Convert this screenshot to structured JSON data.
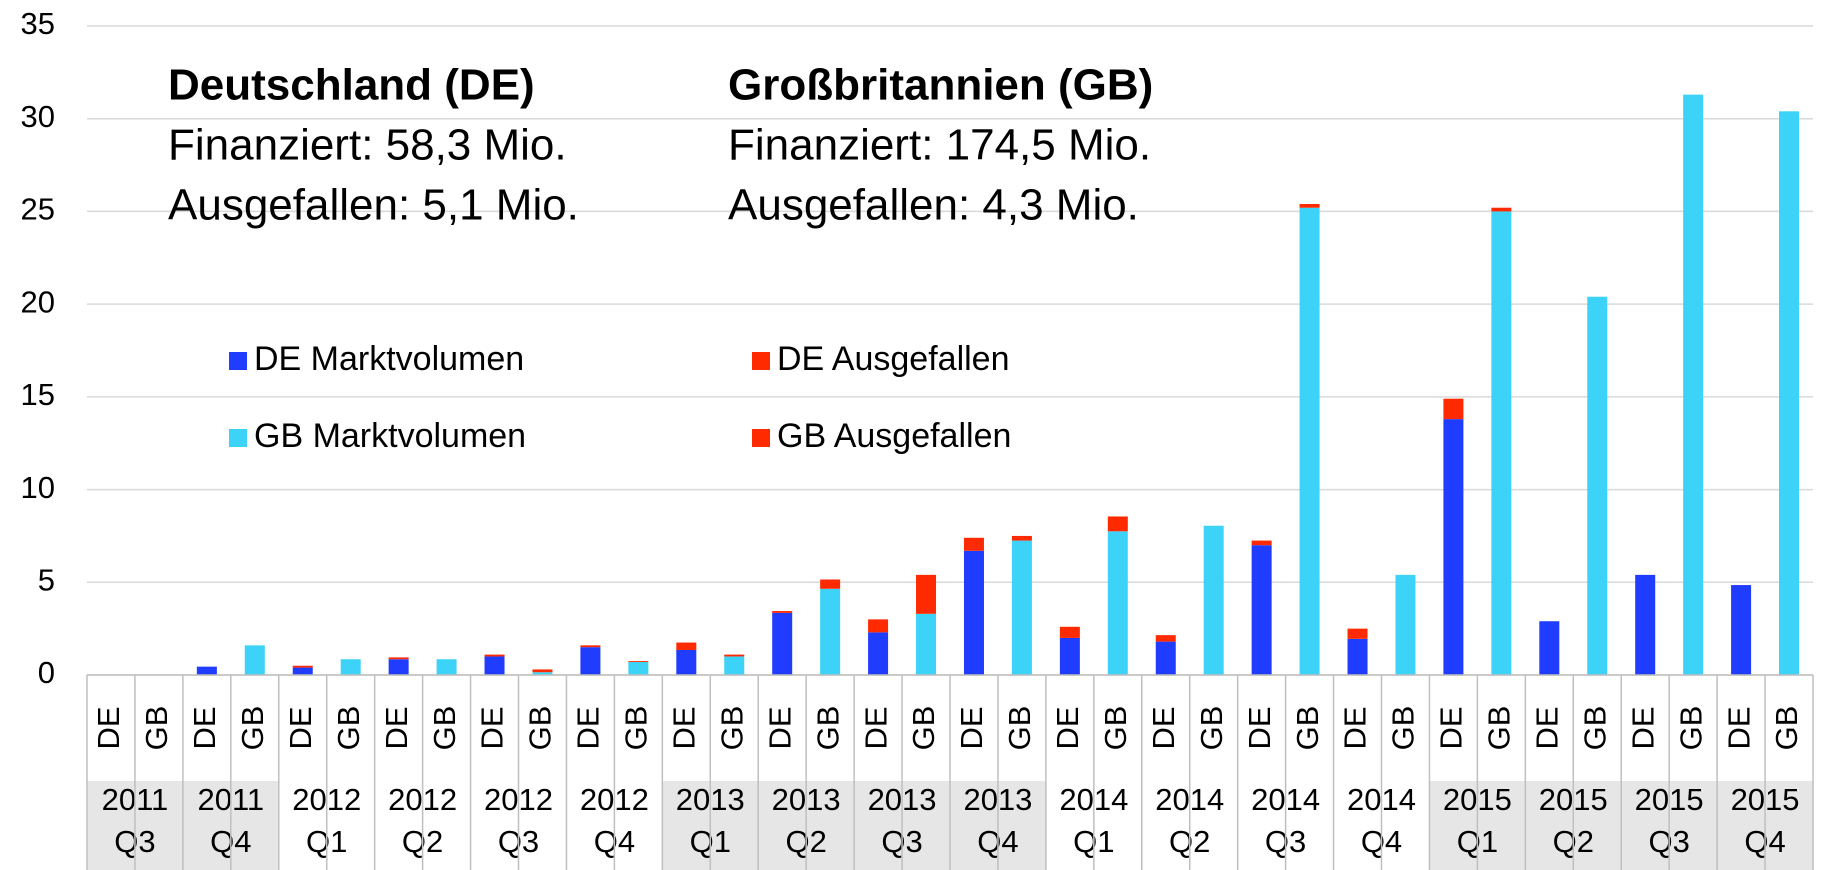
{
  "chart_data": {
    "type": "stacked_bar",
    "categories": [
      "DE",
      "GB",
      "DE",
      "GB",
      "DE",
      "GB",
      "DE",
      "GB",
      "DE",
      "GB",
      "DE",
      "GB",
      "DE",
      "GB",
      "DE",
      "GB",
      "DE",
      "GB",
      "DE",
      "GB",
      "DE",
      "GB",
      "DE",
      "GB",
      "DE",
      "GB",
      "DE",
      "GB",
      "DE",
      "GB",
      "DE",
      "GB",
      "DE",
      "GB",
      "DE",
      "GB"
    ],
    "groups": [
      [
        "2011",
        "Q3"
      ],
      [
        "2011",
        "Q4"
      ],
      [
        "2012",
        "Q1"
      ],
      [
        "2012",
        "Q2"
      ],
      [
        "2012",
        "Q3"
      ],
      [
        "2012",
        "Q4"
      ],
      [
        "2013",
        "Q1"
      ],
      [
        "2013",
        "Q2"
      ],
      [
        "2013",
        "Q3"
      ],
      [
        "2013",
        "Q4"
      ],
      [
        "2014",
        "Q1"
      ],
      [
        "2014",
        "Q2"
      ],
      [
        "2014",
        "Q3"
      ],
      [
        "2014",
        "Q4"
      ],
      [
        "2015",
        "Q1"
      ],
      [
        "2015",
        "Q2"
      ],
      [
        "2015",
        "Q3"
      ],
      [
        "2015",
        "Q4"
      ]
    ],
    "group_fill": [
      "#e6e6e6",
      "#e6e6e6",
      "#ffffff",
      "#ffffff",
      "#ffffff",
      "#ffffff",
      "#e6e6e6",
      "#e6e6e6",
      "#e6e6e6",
      "#e6e6e6",
      "#ffffff",
      "#ffffff",
      "#ffffff",
      "#ffffff",
      "#e6e6e6",
      "#e6e6e6",
      "#e6e6e6",
      "#e6e6e6"
    ],
    "series": [
      {
        "name": "DE Marktvolumen",
        "color": "#1f3cff",
        "values": [
          0,
          null,
          0.45,
          null,
          0.4,
          null,
          0.85,
          null,
          1.0,
          null,
          1.5,
          null,
          1.35,
          null,
          3.35,
          null,
          2.3,
          null,
          6.7,
          null,
          2.0,
          null,
          1.8,
          null,
          7.0,
          null,
          1.95,
          null,
          13.8,
          null,
          2.9,
          null,
          5.4,
          null,
          4.85,
          null
        ]
      },
      {
        "name": "DE Ausgefallen",
        "color": "#ff2a00",
        "values": [
          0,
          null,
          0,
          null,
          0.1,
          null,
          0.1,
          null,
          0.1,
          null,
          0.1,
          null,
          0.4,
          null,
          0.1,
          null,
          0.7,
          null,
          0.7,
          null,
          0.6,
          null,
          0.35,
          null,
          0.25,
          null,
          0.55,
          null,
          1.1,
          null,
          0,
          null,
          0,
          null,
          0,
          null
        ]
      },
      {
        "name": "GB Marktvolumen",
        "color": "#3dd3f8",
        "values": [
          null,
          0,
          null,
          1.6,
          null,
          0.85,
          null,
          0.85,
          null,
          0.15,
          null,
          0.7,
          null,
          1.0,
          null,
          4.65,
          null,
          3.3,
          null,
          7.25,
          null,
          7.75,
          null,
          8.05,
          null,
          25.2,
          null,
          5.4,
          null,
          25.0,
          null,
          20.4,
          null,
          31.3,
          null,
          30.4
        ]
      },
      {
        "name": "GB Ausgefallen",
        "color": "#ff2a00",
        "values": [
          null,
          0,
          null,
          0,
          null,
          0,
          null,
          0,
          null,
          0.15,
          null,
          0.05,
          null,
          0.1,
          null,
          0.5,
          null,
          2.1,
          null,
          0.25,
          null,
          0.8,
          null,
          0,
          null,
          0.2,
          null,
          0,
          null,
          0.2,
          null,
          0,
          null,
          0,
          null,
          0
        ]
      }
    ],
    "ylim": [
      0,
      35
    ],
    "yticks": [
      0,
      5,
      10,
      15,
      20,
      25,
      30,
      35
    ],
    "grid": true,
    "annotations": [
      [
        {
          "text": "Deutschland (DE)",
          "color": "#1a1aee",
          "bold": true
        },
        {
          "text": "Finanziert: 58,3 Mio.",
          "color": "#000000",
          "bold": false
        },
        {
          "text": "Ausgefallen: 5,1 Mio.",
          "color": "#ff0000",
          "bold": false
        }
      ],
      [
        {
          "text": "Großbritannien (GB)",
          "color": "#3dd3f8",
          "bold": true
        },
        {
          "text": "Finanziert: 174,5 Mio.",
          "color": "#000000",
          "bold": false
        },
        {
          "text": "Ausgefallen: 4,3 Mio.",
          "color": "#ff0000",
          "bold": false
        }
      ]
    ]
  }
}
